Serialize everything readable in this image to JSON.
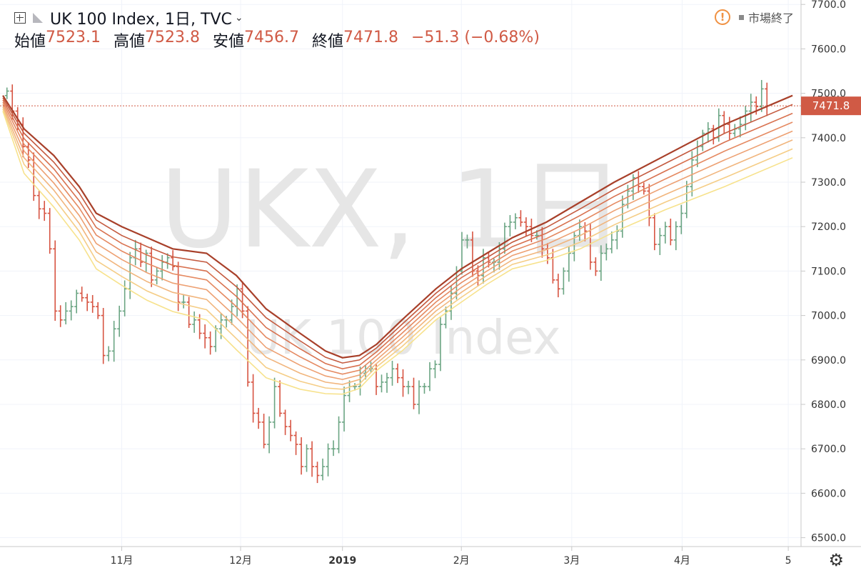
{
  "header": {
    "title": "UK 100 Index, 1日, TVC",
    "ohlc": [
      {
        "label": "始値",
        "value": "7523.1"
      },
      {
        "label": "高値",
        "value": "7523.8"
      },
      {
        "label": "安値",
        "value": "7456.7"
      },
      {
        "label": "終値",
        "value": "7471.8"
      }
    ],
    "change": "−51.3 (−0.68%)",
    "market_status": "市場終了"
  },
  "watermark": {
    "symbol": "UKX, 1日",
    "name": "UK 100 Index"
  },
  "colors": {
    "up": "#6ba583",
    "down": "#d75442",
    "price_label_bg": "#d05a45",
    "ribbon": [
      "#a8402a",
      "#c45a3f",
      "#d8714f",
      "#e58a62",
      "#eda072",
      "#f1b57d",
      "#f5cd86",
      "#f7e28c"
    ]
  },
  "chart_data": {
    "type": "line",
    "title": "UK 100 Index, 1日, TVC",
    "xlabel": "",
    "ylabel": "",
    "ylim": [
      6480,
      7710
    ],
    "y_ticks": [
      "7700.0",
      "7600.0",
      "7500.0",
      "7400.0",
      "7300.0",
      "7200.0",
      "7100.0",
      "7000.0",
      "6900.0",
      "6800.0",
      "6700.0",
      "6600.0",
      "6500.0"
    ],
    "x_ticks": [
      {
        "label": "11月",
        "x": 28
      },
      {
        "label": "12月",
        "x": 56
      },
      {
        "label": "2019",
        "x": 80
      },
      {
        "label": "2月",
        "x": 108
      },
      {
        "label": "3月",
        "x": 134
      },
      {
        "label": "4月",
        "x": 160
      },
      {
        "label": "5",
        "x": 185
      }
    ],
    "x_range": [
      0,
      187
    ],
    "last_price": "7471.8",
    "candle_closes": [
      7505,
      7460,
      7430,
      7380,
      7350,
      7270,
      7240,
      7230,
      7150,
      7010,
      6990,
      7010,
      7020,
      7050,
      7040,
      7030,
      7020,
      7000,
      6910,
      6920,
      6970,
      7010,
      7060,
      7130,
      7150,
      7120,
      7140,
      7080,
      7100,
      7120,
      7130,
      7110,
      7030,
      7030,
      6980,
      6990,
      6960,
      6950,
      6930,
      6970,
      6990,
      6990,
      7020,
      7060,
      7010,
      6850,
      6780,
      6760,
      6710,
      6760,
      6840,
      6780,
      6750,
      6730,
      6710,
      6660,
      6700,
      6660,
      6640,
      6660,
      6700,
      6700,
      6760,
      6820,
      6840,
      6840,
      6870,
      6880,
      6880,
      6840,
      6850,
      6860,
      6880,
      6860,
      6840,
      6840,
      6800,
      6840,
      6840,
      6880,
      6890,
      6980,
      7010,
      7050,
      7100,
      7170,
      7170,
      7100,
      7090,
      7130,
      7120,
      7120,
      7150,
      7200,
      7210,
      7220,
      7210,
      7200,
      7180,
      7180,
      7150,
      7130,
      7080,
      7060,
      7100,
      7140,
      7180,
      7200,
      7190,
      7120,
      7100,
      7140,
      7150,
      7170,
      7190,
      7250,
      7280,
      7310,
      7290,
      7280,
      7220,
      7160,
      7180,
      7200,
      7170,
      7200,
      7230,
      7290,
      7350,
      7380,
      7410,
      7420,
      7400,
      7450,
      7430,
      7410,
      7420,
      7430,
      7460,
      7480,
      7470,
      7510,
      7472
    ],
    "series": [
      {
        "values": [
          7495,
          7420,
          7360,
          7290,
          7230,
          7200,
          7175,
          7150,
          7140,
          7090,
          7015,
          6960,
          6920,
          6905,
          6910,
          6935,
          6990,
          7060,
          7105,
          7140,
          7175,
          7210,
          7255,
          7300,
          7360,
          7430,
          7495
        ]
      },
      {
        "values": [
          7490,
          7410,
          7345,
          7275,
          7215,
          7180,
          7155,
          7132,
          7120,
          7065,
          6995,
          6943,
          6906,
          6893,
          6900,
          6927,
          6980,
          7050,
          7095,
          7130,
          7165,
          7198,
          7240,
          7284,
          7342,
          7410,
          7475
        ]
      },
      {
        "values": [
          7485,
          7398,
          7330,
          7258,
          7198,
          7162,
          7136,
          7113,
          7100,
          7043,
          6973,
          6925,
          6892,
          6880,
          6888,
          6918,
          6970,
          7040,
          7085,
          7120,
          7155,
          7185,
          7225,
          7268,
          7325,
          7390,
          7455
        ]
      },
      {
        "values": [
          7480,
          7385,
          7315,
          7242,
          7181,
          7145,
          7117,
          7094,
          7080,
          7020,
          6951,
          6907,
          6878,
          6868,
          6877,
          6909,
          6960,
          7030,
          7074,
          7110,
          7145,
          7173,
          7210,
          7252,
          7307,
          7370,
          7435
        ]
      },
      {
        "values": [
          7475,
          7370,
          7298,
          7225,
          7162,
          7126,
          7096,
          7073,
          7058,
          6996,
          6928,
          6888,
          6864,
          6856,
          6866,
          6900,
          6950,
          7020,
          7063,
          7100,
          7135,
          7160,
          7195,
          7236,
          7290,
          7350,
          7415
        ]
      },
      {
        "values": [
          7470,
          7355,
          7282,
          7207,
          7143,
          7107,
          7076,
          7052,
          7036,
          6972,
          6906,
          6870,
          6850,
          6845,
          6856,
          6892,
          6940,
          7010,
          7052,
          7090,
          7125,
          7148,
          7180,
          7220,
          7272,
          7330,
          7395
        ]
      },
      {
        "values": [
          7465,
          7340,
          7264,
          7189,
          7124,
          7088,
          7055,
          7031,
          7013,
          6948,
          6883,
          6852,
          6837,
          6834,
          6846,
          6884,
          6930,
          7000,
          7041,
          7080,
          7115,
          7136,
          7165,
          7204,
          7255,
          7310,
          7375
        ]
      },
      {
        "values": [
          7460,
          7320,
          7244,
          7170,
          7105,
          7068,
          7034,
          7009,
          6990,
          6923,
          6860,
          6834,
          6824,
          6823,
          6836,
          6876,
          6920,
          6990,
          7030,
          7070,
          7105,
          7124,
          7150,
          7188,
          7238,
          7290,
          7355
        ]
      }
    ],
    "series_x": [
      0,
      5,
      12,
      18,
      22,
      28,
      34,
      40,
      48,
      55,
      62,
      70,
      76,
      80,
      84,
      88,
      94,
      102,
      108,
      114,
      120,
      128,
      136,
      144,
      156,
      170,
      186
    ],
    "grid": true,
    "legend": "none"
  }
}
